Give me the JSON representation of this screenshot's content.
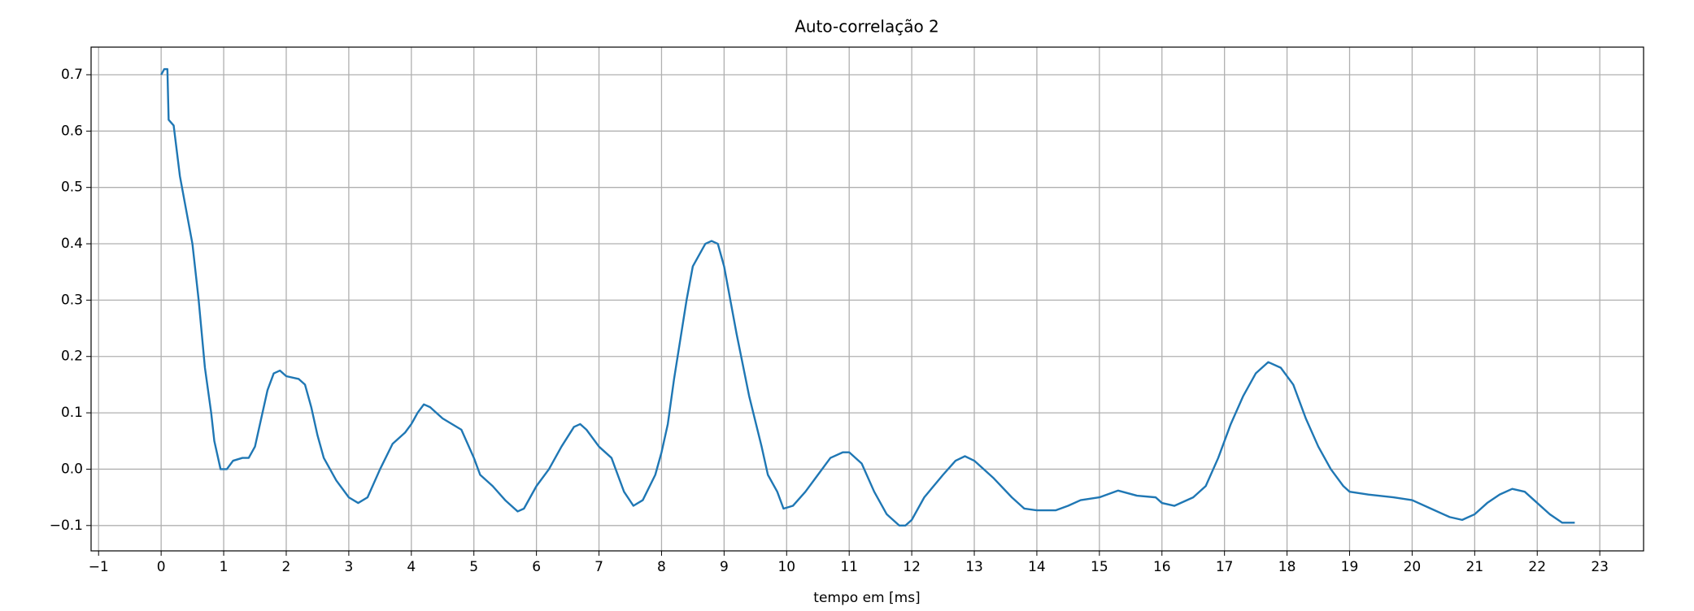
{
  "chart_data": {
    "type": "line",
    "title": "Auto-correlação 2",
    "xlabel": "tempo em [ms]",
    "x": [
      0,
      0.05,
      0.1,
      0.12,
      0.2,
      0.3,
      0.4,
      0.5,
      0.6,
      0.7,
      0.8,
      0.85,
      0.95,
      1.0,
      1.05,
      1.15,
      1.3,
      1.4,
      1.5,
      1.6,
      1.7,
      1.8,
      1.9,
      2.0,
      2.2,
      2.3,
      2.4,
      2.5,
      2.6,
      2.8,
      3.0,
      3.15,
      3.3,
      3.5,
      3.7,
      3.9,
      4.0,
      4.1,
      4.2,
      4.3,
      4.5,
      4.8,
      5.0,
      5.1,
      5.3,
      5.5,
      5.7,
      5.8,
      6.0,
      6.2,
      6.4,
      6.6,
      6.7,
      6.8,
      7.0,
      7.2,
      7.4,
      7.55,
      7.7,
      7.9,
      8.0,
      8.1,
      8.2,
      8.4,
      8.5,
      8.7,
      8.8,
      8.9,
      9.0,
      9.2,
      9.4,
      9.6,
      9.7,
      9.85,
      9.95,
      10.1,
      10.3,
      10.5,
      10.7,
      10.9,
      11.0,
      11.2,
      11.4,
      11.6,
      11.8,
      11.9,
      12.0,
      12.2,
      12.5,
      12.7,
      12.85,
      13.0,
      13.3,
      13.6,
      13.8,
      14.0,
      14.3,
      14.5,
      14.7,
      15.0,
      15.3,
      15.6,
      15.9,
      16.0,
      16.2,
      16.5,
      16.7,
      16.9,
      17.1,
      17.3,
      17.5,
      17.7,
      17.9,
      18.1,
      18.3,
      18.5,
      18.7,
      18.9,
      19.0,
      19.3,
      19.7,
      20.0,
      20.3,
      20.6,
      20.8,
      21.0,
      21.2,
      21.4,
      21.6,
      21.8,
      22.0,
      22.2,
      22.4,
      22.6
    ],
    "series": [
      {
        "color": "#1f77b4",
        "values": [
          0.7,
          0.71,
          0.71,
          0.62,
          0.61,
          0.52,
          0.46,
          0.4,
          0.3,
          0.18,
          0.1,
          0.05,
          0.0,
          0.0,
          0.0,
          0.015,
          0.02,
          0.02,
          0.04,
          0.09,
          0.14,
          0.17,
          0.175,
          0.165,
          0.16,
          0.15,
          0.11,
          0.06,
          0.02,
          -0.02,
          -0.05,
          -0.06,
          -0.05,
          0.0,
          0.045,
          0.065,
          0.08,
          0.1,
          0.115,
          0.11,
          0.09,
          0.07,
          0.02,
          -0.01,
          -0.03,
          -0.055,
          -0.075,
          -0.07,
          -0.03,
          0.0,
          0.04,
          0.075,
          0.08,
          0.07,
          0.04,
          0.02,
          -0.04,
          -0.065,
          -0.055,
          -0.01,
          0.03,
          0.08,
          0.16,
          0.3,
          0.36,
          0.4,
          0.405,
          0.4,
          0.36,
          0.24,
          0.13,
          0.04,
          -0.01,
          -0.04,
          -0.07,
          -0.065,
          -0.04,
          -0.01,
          0.02,
          0.03,
          0.03,
          0.01,
          -0.04,
          -0.08,
          -0.1,
          -0.1,
          -0.09,
          -0.05,
          -0.01,
          0.015,
          0.023,
          0.015,
          -0.015,
          -0.05,
          -0.07,
          -0.073,
          -0.073,
          -0.065,
          -0.055,
          -0.05,
          -0.038,
          -0.047,
          -0.05,
          -0.06,
          -0.065,
          -0.05,
          -0.03,
          0.02,
          0.08,
          0.13,
          0.17,
          0.19,
          0.18,
          0.15,
          0.09,
          0.04,
          0.0,
          -0.03,
          -0.04,
          -0.045,
          -0.05,
          -0.055,
          -0.07,
          -0.085,
          -0.09,
          -0.08,
          -0.06,
          -0.045,
          -0.035,
          -0.04,
          -0.06,
          -0.08,
          -0.095,
          -0.095
        ]
      }
    ],
    "xlim": [
      -1.12,
      23.7
    ],
    "ylim": [
      -0.145,
      0.749
    ],
    "xticks": [
      {
        "value": -1,
        "label": "−1"
      },
      0,
      1,
      2,
      3,
      4,
      5,
      6,
      7,
      8,
      9,
      10,
      11,
      12,
      13,
      14,
      15,
      16,
      17,
      18,
      19,
      20,
      21,
      22,
      23
    ],
    "yticks": [
      {
        "value": -0.1,
        "label": "−0.1"
      },
      {
        "value": 0,
        "label": "0.0"
      },
      0.1,
      0.2,
      0.3,
      0.4,
      0.5,
      0.6,
      0.7
    ],
    "grid": true
  }
}
